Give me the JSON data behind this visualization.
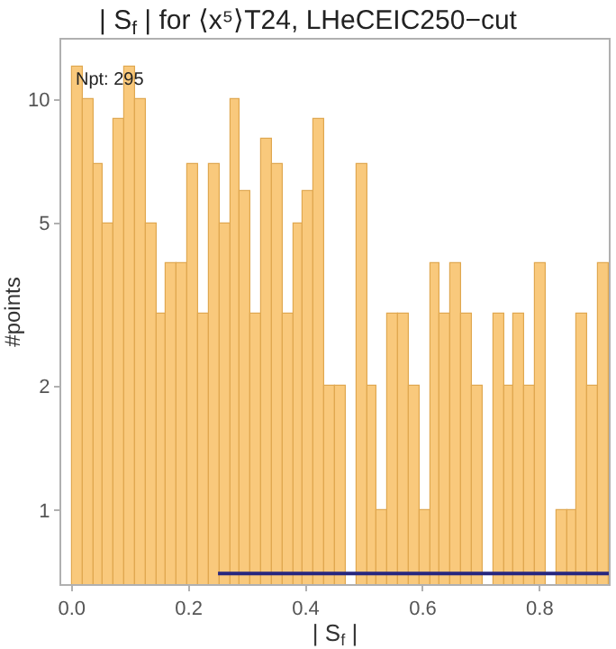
{
  "chart_data": {
    "type": "histogram",
    "title": "| S$_{f}$ | for ⟨x⁵⟩T24, LHeCEIC250−cut",
    "xlabel": "| S$_{f}$ |",
    "ylabel": "#points",
    "bins": [
      0,
      0.018,
      0.036,
      0.054,
      0.072,
      0.09,
      0.108,
      0.126,
      0.144,
      0.162,
      0.18,
      0.198,
      0.216,
      0.234,
      0.252,
      0.27,
      0.288,
      0.306,
      0.324,
      0.342,
      0.36,
      0.378,
      0.396,
      0.414,
      0.432,
      0.45,
      0.468,
      0.486,
      0.504,
      0.522,
      0.54,
      0.558,
      0.576,
      0.594,
      0.612,
      0.63,
      0.648,
      0.666,
      0.684,
      0.702,
      0.72,
      0.738,
      0.756,
      0.774,
      0.792,
      0.81,
      0.828,
      0.846,
      0.864,
      0.882,
      0.9,
      0.918
    ],
    "values": [
      12,
      10,
      7,
      5,
      9,
      12,
      10,
      5,
      3,
      4,
      4,
      7,
      3,
      7,
      5,
      10,
      6,
      3,
      8,
      7,
      3,
      5,
      6,
      9,
      2,
      2,
      null,
      7,
      2,
      1,
      3,
      3,
      2,
      1,
      4,
      3,
      4,
      3,
      2,
      null,
      3,
      2,
      3,
      2,
      4,
      null,
      1,
      1,
      3,
      2,
      4
    ],
    "color": "#f9c97c",
    "series": [
      {
        "type": "line",
        "color": "#27277f",
        "x": [
          0.25,
          0.918
        ],
        "values": [
          0.7,
          0.7
        ]
      }
    ],
    "log": "y",
    "xlim": [
      -0.018,
      0.918
    ],
    "ylim": [
      0.66,
      14
    ],
    "xticks": [
      {
        "value": 0,
        "label": "0.0"
      },
      0.2,
      0.4,
      0.6,
      0.8
    ],
    "yticks": [
      1,
      2,
      5,
      10
    ],
    "annotations": [
      "Npt: 295"
    ]
  }
}
